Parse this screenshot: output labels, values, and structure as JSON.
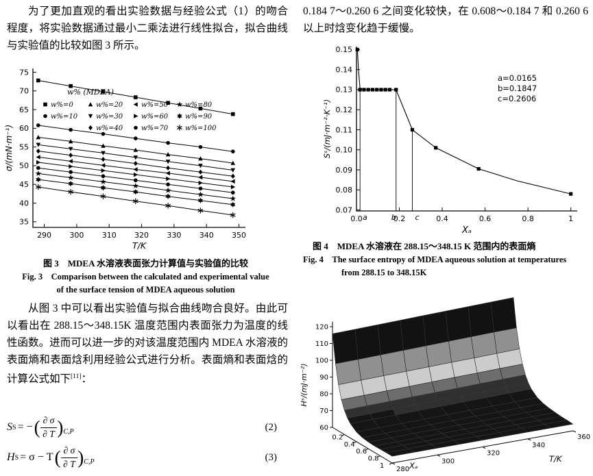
{
  "page": {
    "background": "#ffffff"
  },
  "left": {
    "p1": "为了更加直观的看出实验数据与经验公式（1）的吻合程度，将实验数据通过最小二乘法进行线性拟合，拟合曲线与实验值的比较如图 3 所示。",
    "fig3_caption_cn": "图 3　MDEA 水溶液表面张力计算值与实验值的比较",
    "fig3_caption_en_1": "Fig. 3　Comparison between the calculated and experimental value",
    "fig3_caption_en_2": "of the surface tension of MDEA aqueous solution",
    "p2_main": "从图 3 中可以看出实验值与拟合曲线吻合良好。由此可以看出在 288.15～348.15K 温度范围内表面张力为温度的线性函数。进而可以进一步的对该温度范围内 MDEA 水溶液的表面熵和表面焓利用经验公式进行分析。表面熵和表面焓的计算公式如下",
    "p2_ref": "[11]",
    "p2_tail": "：",
    "equations": [
      {
        "lhs_base": "S",
        "lhs_sup": "S",
        "mid": "= − ",
        "num": "∂ σ",
        "den": "∂ T",
        "sub": "C,P",
        "tag": "(2)"
      },
      {
        "lhs_base": "H",
        "lhs_sup": "S",
        "mid": "= σ − T ",
        "num": "∂ σ",
        "den": "∂ T",
        "sub": "C,P",
        "tag": "(3)"
      }
    ]
  },
  "right": {
    "p3": "0.184 7～0.260 6 之间变化较快，在 0.608～0.184 7 和 0.260 6 以上时焓变化趋于缓慢。",
    "fig4_caption_cn": "图 4　MDEA 水溶液在 288.15～348.15 K 范围内的表面熵",
    "fig4_caption_en_1": "Fig. 4　The surface entropy of MDEA aqueous solution at temperatures",
    "fig4_caption_en_2": "from 288.15 to 348.15K"
  },
  "chart_data": [
    {
      "id": "fig3",
      "type": "line",
      "xlabel": "T/K",
      "ylabel": "σ/(mN·m⁻¹)",
      "xlim": [
        286.5,
        352
      ],
      "ylim": [
        33.5,
        76
      ],
      "xticks": [
        290,
        300,
        310,
        320,
        330,
        340,
        350
      ],
      "yticks": [
        35,
        40,
        45,
        50,
        55,
        60,
        65,
        70,
        75
      ],
      "legend_title": "w% (MDEA)",
      "x": [
        288.15,
        298.15,
        308.15,
        318.15,
        328.15,
        338.15,
        348.15
      ],
      "series": [
        {
          "name": "w%=0",
          "marker": "square",
          "values": [
            72.8,
            71.3,
            69.8,
            68.3,
            66.8,
            65.3,
            63.8
          ]
        },
        {
          "name": "w%=10",
          "marker": "circle",
          "values": [
            60.8,
            59.6,
            58.5,
            57.3,
            56.1,
            55.0,
            53.8
          ]
        },
        {
          "name": "w%=20",
          "marker": "triangle-up",
          "values": [
            57.6,
            56.5,
            55.3,
            54.2,
            53.0,
            51.9,
            50.7
          ]
        },
        {
          "name": "w%=30",
          "marker": "triangle-down",
          "values": [
            55.6,
            54.5,
            53.4,
            52.2,
            51.1,
            50.0,
            48.8
          ]
        },
        {
          "name": "w%=40",
          "marker": "diamond",
          "values": [
            53.9,
            52.8,
            51.7,
            50.6,
            49.4,
            48.3,
            47.2
          ]
        },
        {
          "name": "w%=50",
          "marker": "triangle-left",
          "values": [
            52.3,
            51.2,
            50.1,
            49.0,
            48.0,
            46.9,
            45.8
          ]
        },
        {
          "name": "w%=60",
          "marker": "triangle-right",
          "values": [
            50.9,
            49.8,
            48.7,
            47.6,
            46.5,
            45.4,
            44.3
          ]
        },
        {
          "name": "w%=70",
          "marker": "circle",
          "values": [
            49.4,
            48.3,
            47.2,
            46.1,
            45.0,
            43.9,
            42.8
          ]
        },
        {
          "name": "w%=80",
          "marker": "star",
          "values": [
            47.9,
            46.8,
            45.7,
            44.6,
            43.4,
            42.3,
            41.2
          ]
        },
        {
          "name": "w%=90",
          "marker": "star6",
          "values": [
            46.3,
            45.2,
            44.1,
            43.0,
            41.8,
            40.7,
            39.6
          ]
        },
        {
          "name": "w%=100",
          "marker": "asterisk",
          "values": [
            44.3,
            43.0,
            41.8,
            40.5,
            39.3,
            38.0,
            36.8
          ]
        }
      ]
    },
    {
      "id": "fig4",
      "type": "line",
      "xlabel": "Xₐ",
      "ylabel": "Sˢ/(mJ·m⁻²·K⁻¹)",
      "xlim": [
        0,
        1.03
      ],
      "ylim": [
        0.0695,
        0.1515
      ],
      "xticks": [
        0,
        0.2,
        0.4,
        0.6,
        0.8,
        1
      ],
      "xtick_labels": [
        "0.0",
        "0.2",
        "0.4",
        "0.6",
        "0.8",
        "1"
      ],
      "yticks": [
        0.07,
        0.08,
        0.09,
        0.1,
        0.11,
        0.12,
        0.13,
        0.14,
        0.15
      ],
      "ytick_labels": [
        "0.07",
        "0.08",
        "0.09",
        "0.10",
        "0.11",
        "0.12",
        "0.13",
        "0.14",
        "0.15"
      ],
      "curve": [
        [
          0.004,
          0.15
        ],
        [
          0.01,
          0.139
        ],
        [
          0.0165,
          0.1305
        ],
        [
          0.05,
          0.13
        ],
        [
          0.08,
          0.13
        ],
        [
          0.11,
          0.13
        ],
        [
          0.14,
          0.13
        ],
        [
          0.1847,
          0.13
        ],
        [
          0.2606,
          0.11
        ],
        [
          0.37,
          0.101
        ],
        [
          0.57,
          0.0905
        ],
        [
          0.75,
          0.0845
        ],
        [
          1.0,
          0.078
        ]
      ],
      "points": [
        [
          0.004,
          0.15
        ],
        [
          0.0165,
          0.13
        ],
        [
          0.035,
          0.13
        ],
        [
          0.055,
          0.13
        ],
        [
          0.075,
          0.13
        ],
        [
          0.095,
          0.13
        ],
        [
          0.115,
          0.13
        ],
        [
          0.135,
          0.13
        ],
        [
          0.155,
          0.13
        ],
        [
          0.1847,
          0.13
        ],
        [
          0.2606,
          0.11
        ],
        [
          0.37,
          0.101
        ],
        [
          0.57,
          0.0905
        ],
        [
          1.0,
          0.078
        ]
      ],
      "ref_lines": [
        {
          "label": "a",
          "x": 0.0165,
          "top": 0.13
        },
        {
          "label": "b",
          "x": 0.1847,
          "top": 0.13
        },
        {
          "label": "c",
          "x": 0.2606,
          "top": 0.11
        }
      ],
      "annotations": [
        "a=0.0165",
        "b=0.1847",
        "c=0.2606"
      ]
    },
    {
      "id": "fig5",
      "type": "surface",
      "xlabel": "Xₐ",
      "ylabel": "T/K",
      "zlabel": "Hˢ/(mJ·m⁻²)",
      "xticks": [
        0.2,
        0.4,
        0.6,
        0.8,
        1
      ],
      "yticks": [
        280,
        300,
        320,
        340,
        360
      ],
      "zticks": [
        60,
        70,
        80,
        90,
        100,
        110,
        120
      ],
      "X": [
        0,
        0.05,
        0.1,
        0.15,
        0.2,
        0.25,
        0.3,
        0.4,
        0.5,
        0.6,
        0.7,
        0.8,
        0.9,
        1
      ],
      "T": [
        280,
        290,
        300,
        310,
        320,
        330,
        340,
        350,
        360
      ],
      "values": [
        [
          115.8,
          116.1,
          116.4,
          116.7,
          117.0,
          117.3,
          117.6,
          117.9,
          118.2
        ],
        [
          99.0,
          99.2,
          99.5,
          99.8,
          100.1,
          100.4,
          100.7,
          101.0,
          101.2
        ],
        [
          87.5,
          87.8,
          88.1,
          88.3,
          88.6,
          88.9,
          89.1,
          89.4,
          89.7
        ],
        [
          79.7,
          79.9,
          80.2,
          80.4,
          80.7,
          81.0,
          81.2,
          81.5,
          81.7
        ],
        [
          74.4,
          74.7,
          74.9,
          75.2,
          75.4,
          75.6,
          75.9,
          76.1,
          76.4
        ],
        [
          70.8,
          71.0,
          71.3,
          71.5,
          71.7,
          71.9,
          72.2,
          72.4,
          72.6
        ],
        [
          68.5,
          68.7,
          68.9,
          69.1,
          69.3,
          69.5,
          69.7,
          69.9,
          70.1
        ],
        [
          65.7,
          65.9,
          66.0,
          66.2,
          66.4,
          66.6,
          66.8,
          66.9,
          67.1
        ],
        [
          64.5,
          64.7,
          64.8,
          65.0,
          65.1,
          65.3,
          65.4,
          65.6,
          65.7
        ],
        [
          64.0,
          64.1,
          64.3,
          64.4,
          64.5,
          64.6,
          64.7,
          64.9,
          65.0
        ],
        [
          63.8,
          63.9,
          64.0,
          64.1,
          64.2,
          64.3,
          64.4,
          64.5,
          64.6
        ],
        [
          63.9,
          63.9,
          64.0,
          64.0,
          64.1,
          64.2,
          64.2,
          64.3,
          64.3
        ],
        [
          64.0,
          64.0,
          64.1,
          64.1,
          64.1,
          64.1,
          64.2,
          64.2,
          64.2
        ],
        [
          64.0,
          64.0,
          64.0,
          64.0,
          64.0,
          64.0,
          64.0,
          64.0,
          64.0
        ]
      ]
    }
  ]
}
